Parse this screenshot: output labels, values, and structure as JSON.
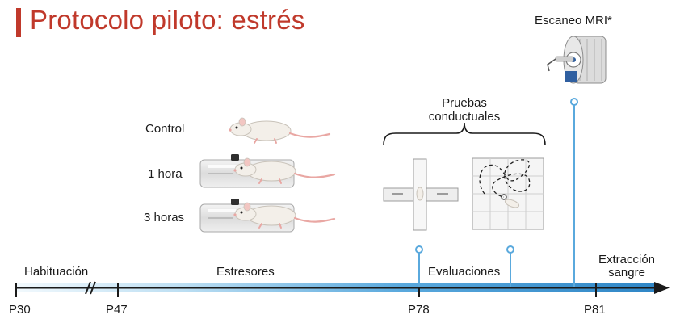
{
  "header": {
    "title": "Protocolo piloto: estrés"
  },
  "groups": [
    {
      "label": "Control"
    },
    {
      "label": "1 hora"
    },
    {
      "label": "3 horas"
    }
  ],
  "scan": {
    "label": "Escaneo MRI*"
  },
  "tests": {
    "label_line1": "Pruebas",
    "label_line2": "conductuales"
  },
  "timeline": {
    "periods": [
      {
        "label": "Habituación"
      },
      {
        "label": "Estresores"
      },
      {
        "label": "Evaluaciones"
      },
      {
        "label_line1": "Extracción",
        "label_line2": "sangre"
      }
    ],
    "ticks": [
      "P30",
      "P47",
      "P78",
      "P81"
    ]
  },
  "colors": {
    "title": "#c0392b",
    "timeline_light": "#e8f4fb",
    "timeline_dark": "#2f86c6",
    "marker": "#5aa9dd"
  },
  "icons": [
    "rat-icon",
    "restraint-tube-icon",
    "plus-maze-icon",
    "open-field-icon",
    "mri-scanner-icon"
  ]
}
